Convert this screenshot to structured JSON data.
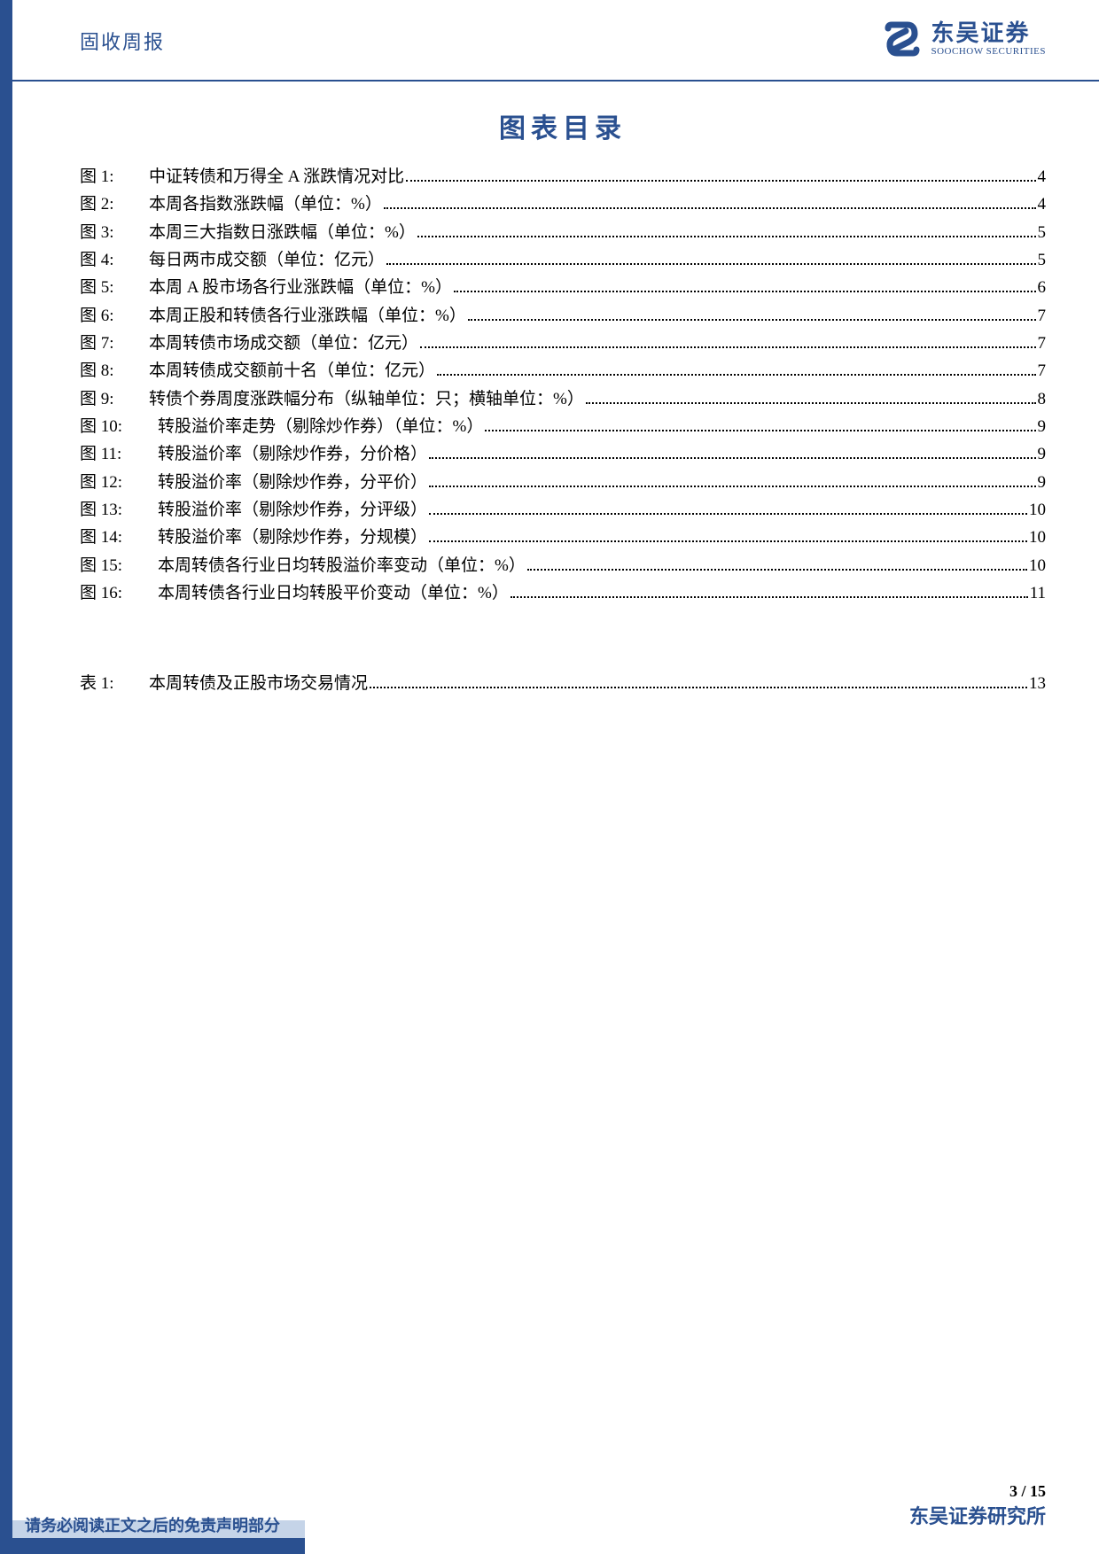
{
  "header": {
    "report_type": "固收周报",
    "logo_cn": "东吴证券",
    "logo_en": "SOOCHOW SECURITIES"
  },
  "toc": {
    "title": "图表目录",
    "figures": [
      {
        "label": "图 1:",
        "text": "中证转债和万得全 A 涨跌情况对比",
        "page": "4"
      },
      {
        "label": "图 2:",
        "text": "本周各指数涨跌幅（单位：%）",
        "page": "4"
      },
      {
        "label": "图 3:",
        "text": "本周三大指数日涨跌幅（单位：%）",
        "page": "5"
      },
      {
        "label": "图 4:",
        "text": "每日两市成交额（单位：亿元）",
        "page": "5"
      },
      {
        "label": "图 5:",
        "text": "本周 A 股市场各行业涨跌幅（单位：%）",
        "page": "6"
      },
      {
        "label": "图 6:",
        "text": "本周正股和转债各行业涨跌幅（单位：%）",
        "page": "7"
      },
      {
        "label": "图 7:",
        "text": "本周转债市场成交额（单位：亿元）",
        "page": "7"
      },
      {
        "label": "图 8:",
        "text": "本周转债成交额前十名（单位：亿元）",
        "page": "7"
      },
      {
        "label": "图 9:",
        "text": "转债个券周度涨跌幅分布（纵轴单位：只；横轴单位：%）",
        "page": "8"
      },
      {
        "label": "图 10:",
        "text": "转股溢价率走势（剔除炒作券）（单位：%）",
        "page": "9"
      },
      {
        "label": "图 11:",
        "text": "转股溢价率（剔除炒作券，分价格）",
        "page": "9"
      },
      {
        "label": "图 12:",
        "text": "转股溢价率（剔除炒作券，分平价）",
        "page": "9"
      },
      {
        "label": "图 13:",
        "text": "转股溢价率（剔除炒作券，分评级）",
        "page": "10"
      },
      {
        "label": "图 14:",
        "text": "转股溢价率（剔除炒作券，分规模）",
        "page": "10"
      },
      {
        "label": "图 15:",
        "text": "本周转债各行业日均转股溢价率变动（单位：%）",
        "page": "10"
      },
      {
        "label": "图 16:",
        "text": "本周转债各行业日均转股平价变动（单位：%）",
        "page": "11"
      }
    ],
    "tables": [
      {
        "label": "表 1:",
        "text": "本周转债及正股市场交易情况",
        "page": "13"
      }
    ]
  },
  "footer": {
    "page_current": "3",
    "page_sep": " / ",
    "page_total": "15",
    "org": "东吴证券研究所",
    "disclaimer": "请务必阅读正文之后的免责声明部分"
  },
  "colors": {
    "brand": "#2a5090",
    "light": "#c5d4e8",
    "text": "#000000",
    "bg": "#ffffff"
  }
}
